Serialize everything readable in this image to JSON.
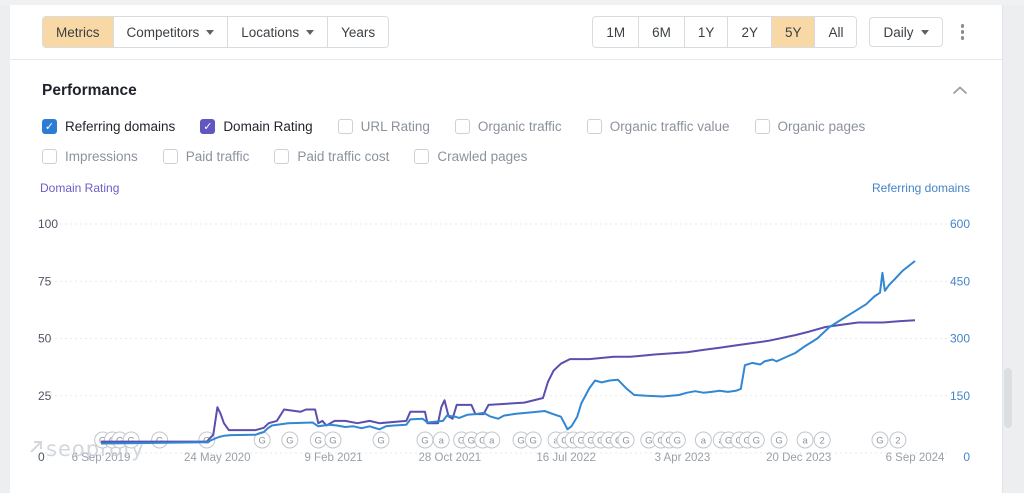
{
  "toolbar": {
    "tabs": [
      {
        "label": "Metrics",
        "active": true,
        "caret": false
      },
      {
        "label": "Competitors",
        "active": false,
        "caret": true
      },
      {
        "label": "Locations",
        "active": false,
        "caret": true
      },
      {
        "label": "Years",
        "active": false,
        "caret": false
      }
    ],
    "ranges": [
      {
        "label": "1M",
        "active": false
      },
      {
        "label": "6M",
        "active": false
      },
      {
        "label": "1Y",
        "active": false
      },
      {
        "label": "2Y",
        "active": false
      },
      {
        "label": "5Y",
        "active": true
      },
      {
        "label": "All",
        "active": false
      }
    ],
    "granularity": {
      "label": "Daily"
    }
  },
  "section": {
    "title": "Performance"
  },
  "metrics": {
    "row1": [
      {
        "label": "Referring domains",
        "checked": true,
        "color": "#2d7cd4"
      },
      {
        "label": "Domain Rating",
        "checked": true,
        "color": "#6156c2"
      },
      {
        "label": "URL Rating",
        "checked": false
      },
      {
        "label": "Organic traffic",
        "checked": false
      },
      {
        "label": "Organic traffic value",
        "checked": false
      },
      {
        "label": "Organic pages",
        "checked": false
      }
    ],
    "row2": [
      {
        "label": "Impressions",
        "checked": false
      },
      {
        "label": "Paid traffic",
        "checked": false
      },
      {
        "label": "Paid traffic cost",
        "checked": false
      },
      {
        "label": "Crawled pages",
        "checked": false
      }
    ]
  },
  "chart_data": {
    "type": "line",
    "title": "Performance",
    "grid": "horizontal-dashed",
    "legend_position": "none",
    "watermark": "seoprofy",
    "left_axis": {
      "label": "Domain Rating",
      "range": [
        0,
        100
      ],
      "ticks": [
        100,
        75,
        50,
        25,
        0
      ],
      "color": "#6a5fc7"
    },
    "right_axis": {
      "label": "Referring domains",
      "range": [
        0,
        600
      ],
      "ticks": [
        600,
        450,
        300,
        150,
        0
      ],
      "color": "#4584c7"
    },
    "x_ticks": [
      "6 Sep 2019",
      "24 May 2020",
      "9 Feb 2021",
      "28 Oct 2021",
      "16 Jul 2022",
      "3 Apr 2023",
      "20 Dec 2023",
      "6 Sep 2024"
    ],
    "series": [
      {
        "name": "Domain Rating",
        "axis": "left",
        "color": "#5a4fae",
        "points": [
          [
            0,
            5
          ],
          [
            0.13,
            5
          ],
          [
            0.138,
            8
          ],
          [
            0.143,
            20
          ],
          [
            0.147,
            17
          ],
          [
            0.151,
            13
          ],
          [
            0.157,
            10
          ],
          [
            0.19,
            10
          ],
          [
            0.2,
            11
          ],
          [
            0.206,
            13
          ],
          [
            0.216,
            14
          ],
          [
            0.225,
            19
          ],
          [
            0.245,
            18
          ],
          [
            0.252,
            19
          ],
          [
            0.263,
            19
          ],
          [
            0.267,
            13
          ],
          [
            0.272,
            14
          ],
          [
            0.277,
            12
          ],
          [
            0.287,
            14
          ],
          [
            0.3,
            14
          ],
          [
            0.315,
            13
          ],
          [
            0.33,
            14
          ],
          [
            0.342,
            13
          ],
          [
            0.375,
            14
          ],
          [
            0.38,
            18
          ],
          [
            0.398,
            18
          ],
          [
            0.401,
            13
          ],
          [
            0.414,
            13
          ],
          [
            0.418,
            20
          ],
          [
            0.422,
            23
          ],
          [
            0.427,
            16
          ],
          [
            0.432,
            15
          ],
          [
            0.437,
            21
          ],
          [
            0.455,
            21
          ],
          [
            0.46,
            17
          ],
          [
            0.47,
            17
          ],
          [
            0.476,
            21
          ],
          [
            0.52,
            22
          ],
          [
            0.543,
            24
          ],
          [
            0.549,
            31
          ],
          [
            0.556,
            36
          ],
          [
            0.565,
            39
          ],
          [
            0.576,
            41
          ],
          [
            0.6,
            41
          ],
          [
            0.63,
            42
          ],
          [
            0.65,
            42
          ],
          [
            0.68,
            43
          ],
          [
            0.7,
            43.5
          ],
          [
            0.72,
            44
          ],
          [
            0.74,
            45
          ],
          [
            0.76,
            46
          ],
          [
            0.78,
            47
          ],
          [
            0.8,
            48
          ],
          [
            0.82,
            49
          ],
          [
            0.853,
            51.5
          ],
          [
            0.87,
            53
          ],
          [
            0.89,
            55
          ],
          [
            0.91,
            56
          ],
          [
            0.93,
            57
          ],
          [
            0.96,
            57
          ],
          [
            0.98,
            57.5
          ],
          [
            1,
            58
          ]
        ]
      },
      {
        "name": "Referring domains",
        "axis": "right",
        "color": "#3287d3",
        "points": [
          [
            0,
            25
          ],
          [
            0.13,
            28
          ],
          [
            0.14,
            38
          ],
          [
            0.145,
            42
          ],
          [
            0.151,
            45
          ],
          [
            0.16,
            47
          ],
          [
            0.19,
            48
          ],
          [
            0.2,
            55
          ],
          [
            0.205,
            65
          ],
          [
            0.21,
            72
          ],
          [
            0.22,
            75
          ],
          [
            0.23,
            78
          ],
          [
            0.26,
            80
          ],
          [
            0.267,
            70
          ],
          [
            0.28,
            74
          ],
          [
            0.29,
            72
          ],
          [
            0.3,
            68
          ],
          [
            0.31,
            70
          ],
          [
            0.32,
            65
          ],
          [
            0.33,
            70
          ],
          [
            0.342,
            62
          ],
          [
            0.35,
            70
          ],
          [
            0.36,
            72
          ],
          [
            0.375,
            74
          ],
          [
            0.38,
            88
          ],
          [
            0.395,
            90
          ],
          [
            0.401,
            80
          ],
          [
            0.41,
            82
          ],
          [
            0.42,
            84
          ],
          [
            0.425,
            98
          ],
          [
            0.435,
            95
          ],
          [
            0.44,
            92
          ],
          [
            0.45,
            100
          ],
          [
            0.46,
            102
          ],
          [
            0.47,
            105
          ],
          [
            0.478,
            96
          ],
          [
            0.488,
            90
          ],
          [
            0.495,
            98
          ],
          [
            0.51,
            103
          ],
          [
            0.53,
            107
          ],
          [
            0.545,
            110
          ],
          [
            0.558,
            100
          ],
          [
            0.565,
            95
          ],
          [
            0.57,
            75
          ],
          [
            0.573,
            62
          ],
          [
            0.578,
            70
          ],
          [
            0.585,
            95
          ],
          [
            0.59,
            130
          ],
          [
            0.6,
            170
          ],
          [
            0.607,
            190
          ],
          [
            0.615,
            185
          ],
          [
            0.625,
            190
          ],
          [
            0.635,
            192
          ],
          [
            0.645,
            170
          ],
          [
            0.655,
            152
          ],
          [
            0.67,
            150
          ],
          [
            0.69,
            148
          ],
          [
            0.7,
            150
          ],
          [
            0.71,
            152
          ],
          [
            0.72,
            158
          ],
          [
            0.73,
            162
          ],
          [
            0.74,
            158
          ],
          [
            0.75,
            160
          ],
          [
            0.76,
            163
          ],
          [
            0.77,
            160
          ],
          [
            0.78,
            163
          ],
          [
            0.786,
            168
          ],
          [
            0.791,
            230
          ],
          [
            0.8,
            236
          ],
          [
            0.81,
            232
          ],
          [
            0.815,
            240
          ],
          [
            0.825,
            245
          ],
          [
            0.83,
            240
          ],
          [
            0.84,
            250
          ],
          [
            0.853,
            262
          ],
          [
            0.865,
            280
          ],
          [
            0.88,
            300
          ],
          [
            0.895,
            330
          ],
          [
            0.91,
            350
          ],
          [
            0.925,
            370
          ],
          [
            0.94,
            390
          ],
          [
            0.95,
            410
          ],
          [
            0.957,
            420
          ],
          [
            0.96,
            472
          ],
          [
            0.963,
            425
          ],
          [
            0.968,
            440
          ],
          [
            0.975,
            455
          ],
          [
            0.985,
            478
          ],
          [
            1,
            503
          ]
        ]
      }
    ],
    "markers": [
      {
        "f": 0.002,
        "t": "G"
      },
      {
        "f": 0.014,
        "t": "G"
      },
      {
        "f": 0.023,
        "t": "G"
      },
      {
        "f": 0.037,
        "t": "G"
      },
      {
        "f": 0.072,
        "t": "G"
      },
      {
        "f": 0.13,
        "t": "G"
      },
      {
        "f": 0.198,
        "t": "G"
      },
      {
        "f": 0.232,
        "t": "G"
      },
      {
        "f": 0.267,
        "t": "G"
      },
      {
        "f": 0.285,
        "t": "G"
      },
      {
        "f": 0.344,
        "t": "G"
      },
      {
        "f": 0.398,
        "t": "G"
      },
      {
        "f": 0.418,
        "t": "a"
      },
      {
        "f": 0.443,
        "t": "G"
      },
      {
        "f": 0.455,
        "t": "G"
      },
      {
        "f": 0.469,
        "t": "G"
      },
      {
        "f": 0.48,
        "t": "a"
      },
      {
        "f": 0.516,
        "t": "G"
      },
      {
        "f": 0.531,
        "t": "G"
      },
      {
        "f": 0.559,
        "t": "a"
      },
      {
        "f": 0.57,
        "t": "G"
      },
      {
        "f": 0.58,
        "t": "G"
      },
      {
        "f": 0.59,
        "t": "G"
      },
      {
        "f": 0.602,
        "t": "G"
      },
      {
        "f": 0.614,
        "t": "G"
      },
      {
        "f": 0.624,
        "t": "G"
      },
      {
        "f": 0.636,
        "t": "G"
      },
      {
        "f": 0.645,
        "t": "G"
      },
      {
        "f": 0.673,
        "t": "G"
      },
      {
        "f": 0.688,
        "t": "G"
      },
      {
        "f": 0.698,
        "t": "G"
      },
      {
        "f": 0.708,
        "t": "G"
      },
      {
        "f": 0.74,
        "t": "a"
      },
      {
        "f": 0.762,
        "t": "a"
      },
      {
        "f": 0.771,
        "t": "G"
      },
      {
        "f": 0.784,
        "t": "G"
      },
      {
        "f": 0.794,
        "t": "G"
      },
      {
        "f": 0.805,
        "t": "G"
      },
      {
        "f": 0.833,
        "t": "G"
      },
      {
        "f": 0.865,
        "t": "a"
      },
      {
        "f": 0.886,
        "t": "2"
      },
      {
        "f": 0.957,
        "t": "G"
      },
      {
        "f": 0.979,
        "t": "2"
      }
    ]
  }
}
